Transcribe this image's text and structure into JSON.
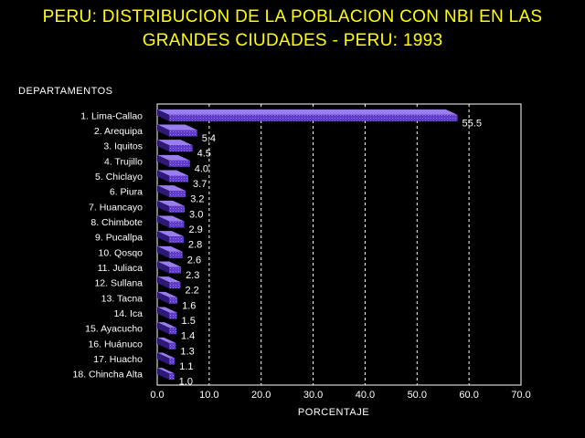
{
  "chart_data": {
    "type": "bar",
    "orientation": "horizontal",
    "title_lines": [
      "PERU: DISTRIBUCION DE LA POBLACION CON NBI EN LAS",
      "GRANDES CIUDADES - PERU: 1993"
    ],
    "ylabel": "DEPARTAMENTOS",
    "xlabel": "PORCENTAJE",
    "xlim": [
      0,
      70
    ],
    "x_ticks": [
      "0.0",
      "10.0",
      "20.0",
      "30.0",
      "40.0",
      "50.0",
      "60.0",
      "70.0"
    ],
    "grid": "vertical-dashed",
    "categories": [
      "1. Lima-Callao",
      "2. Arequipa",
      "3. Iquitos",
      "4. Trujillo",
      "5. Chiclayo",
      "6. Piura",
      "7. Huancayo",
      "8. Chimbote",
      "9. Pucallpa",
      "10. Qosqo",
      "11. Juliaca",
      "12. Sullana",
      "13. Tacna",
      "14. Ica",
      "15. Ayacucho",
      "16. Huánuco",
      "17. Huacho",
      "18. Chincha Alta"
    ],
    "values": [
      55.5,
      5.4,
      4.5,
      4.0,
      3.7,
      3.2,
      3.0,
      2.9,
      2.8,
      2.6,
      2.3,
      2.2,
      1.6,
      1.5,
      1.4,
      1.3,
      1.1,
      1.0
    ],
    "value_labels": [
      "55.5",
      "5.4",
      "4.5",
      "4.0",
      "3.7",
      "3.2",
      "3.0",
      "2.9",
      "2.8",
      "2.6",
      "2.3",
      "2.2",
      "1.6",
      "1.5",
      "1.4",
      "1.3",
      "1.1",
      "1.0"
    ],
    "colors": {
      "background": "#000000",
      "title": "#ffff00",
      "text": "#ffffff",
      "bar_front": "#5a35c8",
      "bar_top": "#9a7ef0",
      "bar_side": "#2e1878",
      "grid": "#ffffff"
    }
  }
}
